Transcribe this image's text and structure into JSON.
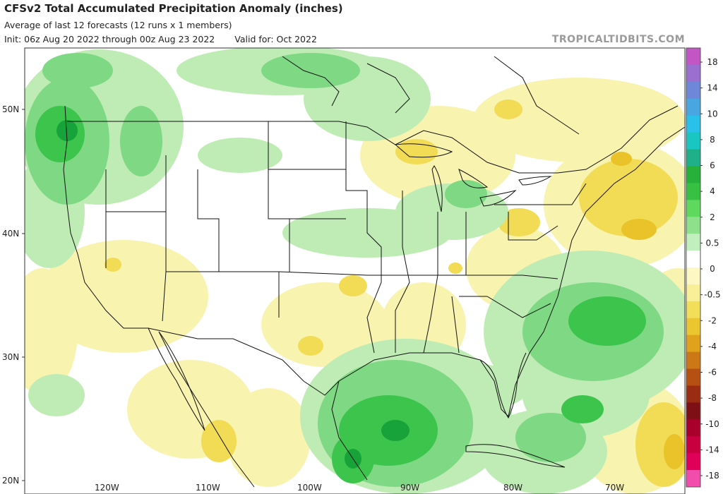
{
  "header": {
    "title": "CFSv2 Total Accumulated Precipitation Anomaly (inches)",
    "subtitle": "Average of last 12 forecasts (12 runs x 1 members)",
    "init": "Init: 06z Aug 20 2022 through 00z Aug 23 2022",
    "valid": "Valid for: Oct 2022",
    "brand": "TROPICALTIDBITS.COM"
  },
  "axes": {
    "lat_labels": [
      "50N",
      "40N",
      "30N",
      "20N"
    ],
    "lon_labels": [
      "120W",
      "110W",
      "100W",
      "90W",
      "80W",
      "70W"
    ]
  },
  "legend": {
    "ticks": [
      "18",
      "14",
      "10",
      "8",
      "6",
      "4",
      "2",
      "0.5",
      "0",
      "-0.5",
      "-2",
      "-4",
      "-6",
      "-8",
      "-10",
      "-14",
      "-18"
    ],
    "colors": [
      "#c455c4",
      "#9b6fd0",
      "#6f87d8",
      "#4aa6e0",
      "#29c1ea",
      "#19c6c2",
      "#1fb08a",
      "#27b03a",
      "#37c041",
      "#5fd85e",
      "#8ee08a",
      "#c2efbe",
      "#ffffff",
      "#fdf7c4",
      "#f8ef98",
      "#f3de5a",
      "#ecc62e",
      "#e0a21c",
      "#cd7816",
      "#b54f12",
      "#9a2c12",
      "#7f0f16",
      "#a8002a",
      "#c90040",
      "#e0005a",
      "#f24dac"
    ]
  },
  "map": {
    "colors": {
      "light_green": "#bfecb5",
      "mid_green": "#7fd884",
      "green": "#3cc44d",
      "dark_green": "#17a33a",
      "light_yellow": "#f9f3b0",
      "yellow": "#f2dc56",
      "gold": "#e9c329"
    },
    "regions": [
      {
        "name": "pacific-northwest-wet",
        "level": 3,
        "shape": "ellipse"
      },
      {
        "name": "canadian-prairies-wet",
        "level": 1,
        "shape": "ellipse"
      },
      {
        "name": "great-lakes-wet",
        "level": 2,
        "shape": "ellipse"
      },
      {
        "name": "central-plains-wet",
        "level": 1,
        "shape": "ellipse"
      },
      {
        "name": "gulf-of-mexico-wet",
        "level": 4,
        "shape": "ellipse"
      },
      {
        "name": "bahamas-atlantic-wet",
        "level": 3,
        "shape": "ellipse"
      },
      {
        "name": "northeast-dry",
        "level": -2,
        "shape": "ellipse"
      },
      {
        "name": "southwest-dry",
        "level": -1,
        "shape": "ellipse"
      },
      {
        "name": "east-coast-dry",
        "level": -1,
        "shape": "ellipse"
      },
      {
        "name": "caribbean-dry",
        "level": -2,
        "shape": "ellipse"
      }
    ]
  }
}
